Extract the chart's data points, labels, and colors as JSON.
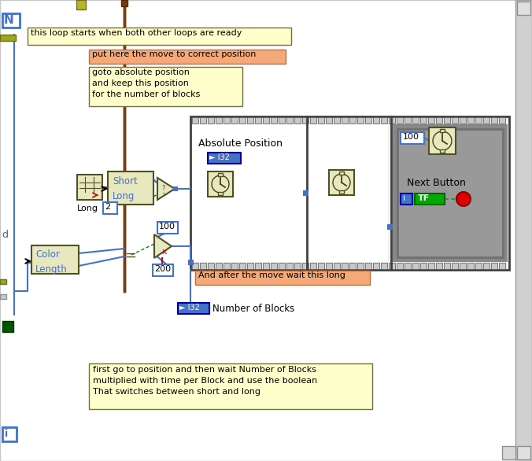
{
  "bg_color": "#f4f4f4",
  "main_bg": "#ffffff",
  "comment_yellow_bg": "#ffffcc",
  "comment_orange_bg": "#f5a878",
  "wire_blue": "#4472c4",
  "wire_brown": "#7a3a10",
  "block_fill": "#e8e8c0",
  "label_color": "#4472c4",
  "dark_olive": "#6a6a20",
  "title_text": "this loop starts when both other loops are ready",
  "orange_label1": "put here the move to correct position",
  "yellow_comment1": "goto absolute position\nand keep this position\nfor the number of blocks",
  "orange_label2": "And after the move wait this long",
  "bottom_comment": "first go to position and then wait Number of Blocks\nmultiplied with time per Block and use the boolean\nThat switches between short and long",
  "abs_pos_label": "Absolute Position",
  "i32_label": "► I32",
  "short_long_label": "Short\nLong",
  "color_length_label": "Color\nLength",
  "long_label": "Long",
  "next_button_label": "Next Button",
  "val_100": "100",
  "val_200": "200",
  "val_2": "2",
  "num_blocks_text": "Number of Blocks"
}
